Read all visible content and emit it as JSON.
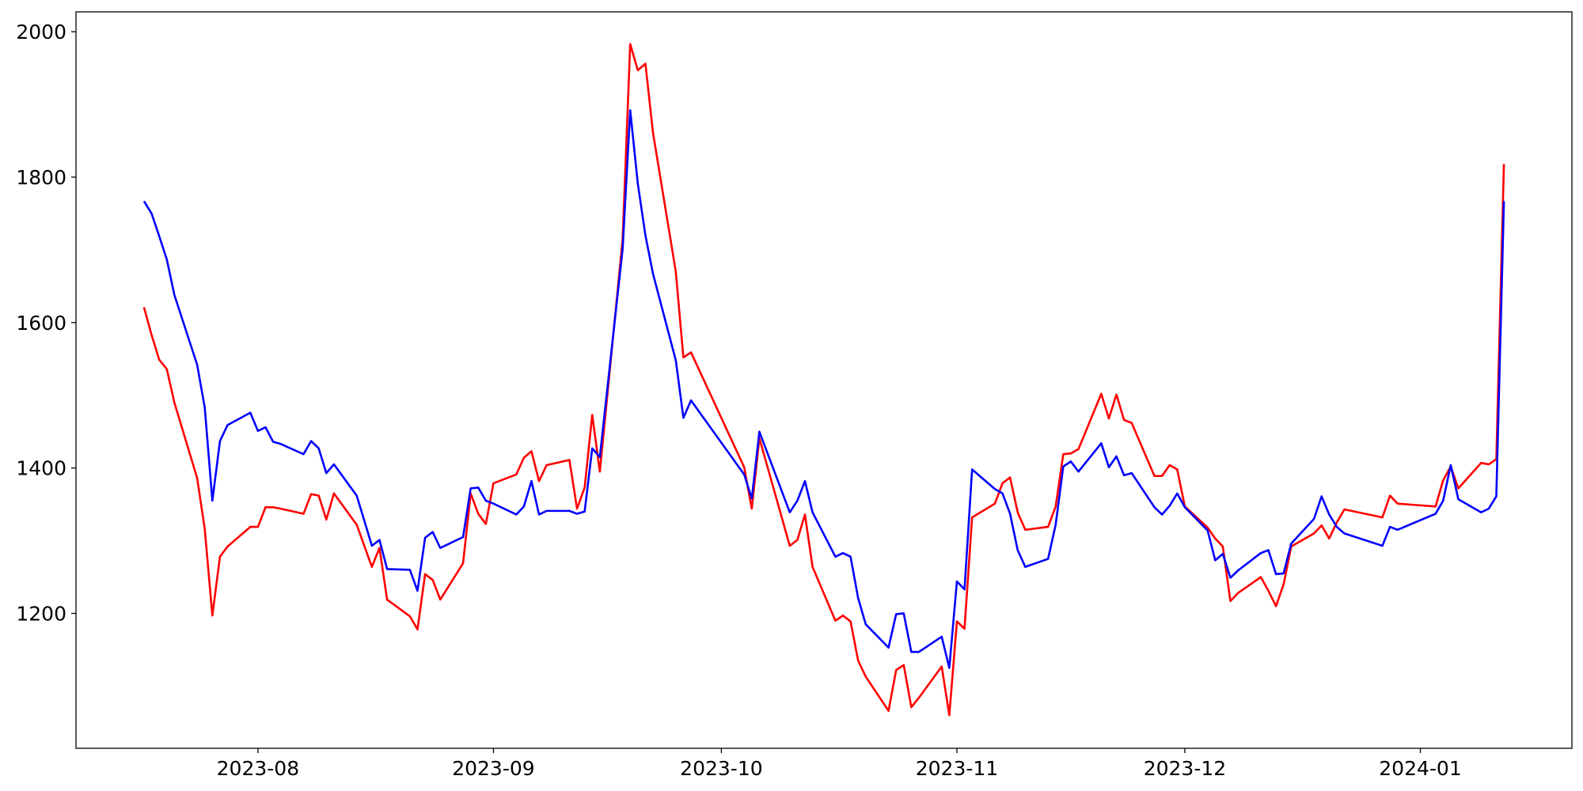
{
  "chart_data": {
    "type": "line",
    "x": [
      19555,
      19556,
      19557,
      19558,
      19559,
      19562,
      19563,
      19564,
      19565,
      19566,
      19569,
      19570,
      19571,
      19572,
      19573,
      19576,
      19577,
      19578,
      19579,
      19580,
      19583,
      19585,
      19586,
      19587,
      19590,
      19591,
      19592,
      19593,
      19594,
      19597,
      19598,
      19599,
      19600,
      19601,
      19604,
      19605,
      19606,
      19607,
      19608,
      19611,
      19612,
      19613,
      19614,
      19615,
      19618,
      19619,
      19620,
      19621,
      19622,
      19625,
      19626,
      19627,
      19634,
      19635,
      19636,
      19640,
      19641,
      19642,
      19643,
      19646,
      19647,
      19648,
      19649,
      19650,
      19653,
      19654,
      19655,
      19656,
      19657,
      19660,
      19661,
      19662,
      19663,
      19664,
      19667,
      19668,
      19669,
      19670,
      19671,
      19674,
      19675,
      19676,
      19677,
      19678,
      19681,
      19682,
      19683,
      19684,
      19685,
      19688,
      19689,
      19690,
      19691,
      19692,
      19695,
      19696,
      19697,
      19698,
      19699,
      19702,
      19703,
      19704,
      19705,
      19706,
      19709,
      19710,
      19711,
      19712,
      19713,
      19718,
      19719,
      19720,
      19725,
      19726,
      19727,
      19728,
      19731,
      19732,
      19733,
      19734
    ],
    "series": [
      {
        "color": "#ff0000",
        "values": [
          1621,
          1583,
          1549,
          1536,
          1490,
          1386,
          1316,
          1197,
          1278,
          1292,
          1319,
          1319,
          1346,
          1346,
          1344,
          1337,
          1364,
          1362,
          1329,
          1365,
          1322,
          1264,
          1290,
          1219,
          1196,
          1178,
          1254,
          1246,
          1219,
          1269,
          1365,
          1337,
          1323,
          1379,
          1391,
          1414,
          1423,
          1382,
          1404,
          1411,
          1344,
          1373,
          1473,
          1395,
          1714,
          1983,
          1947,
          1956,
          1861,
          1670,
          1552,
          1559,
          1401,
          1344,
          1441,
          1293,
          1301,
          1336,
          1264,
          1190,
          1197,
          1189,
          1135,
          1113,
          1066,
          1122,
          1129,
          1071,
          1084,
          1127,
          1060,
          1189,
          1179,
          1332,
          1351,
          1379,
          1387,
          1339,
          1315,
          1319,
          1347,
          1419,
          1420,
          1426,
          1502,
          1468,
          1501,
          1466,
          1462,
          1389,
          1389,
          1404,
          1398,
          1347,
          1318,
          1303,
          1292,
          1217,
          1228,
          1250,
          1231,
          1210,
          1240,
          1292,
          1310,
          1321,
          1303,
          1325,
          1343,
          1332,
          1362,
          1351,
          1347,
          1383,
          1402,
          1372,
          1407,
          1405,
          1412,
          1818
        ]
      },
      {
        "color": "#0000ff",
        "values": [
          1767,
          1750,
          1719,
          1687,
          1638,
          1542,
          1483,
          1355,
          1437,
          1459,
          1476,
          1451,
          1456,
          1436,
          1433,
          1419,
          1437,
          1427,
          1393,
          1405,
          1362,
          1293,
          1301,
          1261,
          1260,
          1231,
          1304,
          1312,
          1290,
          1305,
          1372,
          1373,
          1355,
          1351,
          1336,
          1347,
          1382,
          1336,
          1341,
          1341,
          1337,
          1340,
          1427,
          1415,
          1701,
          1892,
          1791,
          1720,
          1667,
          1548,
          1469,
          1493,
          1391,
          1358,
          1450,
          1339,
          1355,
          1382,
          1339,
          1278,
          1283,
          1278,
          1221,
          1185,
          1153,
          1199,
          1200,
          1147,
          1147,
          1168,
          1125,
          1244,
          1233,
          1398,
          1371,
          1365,
          1337,
          1287,
          1264,
          1275,
          1322,
          1402,
          1409,
          1395,
          1434,
          1401,
          1416,
          1390,
          1393,
          1346,
          1336,
          1348,
          1365,
          1346,
          1314,
          1273,
          1282,
          1249,
          1259,
          1283,
          1287,
          1254,
          1255,
          1296,
          1330,
          1361,
          1336,
          1319,
          1310,
          1293,
          1319,
          1315,
          1337,
          1355,
          1404,
          1357,
          1339,
          1344,
          1361,
          1767
        ]
      }
    ],
    "xlim": [
      19546.05,
      19742.95
    ],
    "xticks": [
      {
        "value": 19570,
        "label": "2023-08"
      },
      {
        "value": 19601,
        "label": "2023-09"
      },
      {
        "value": 19631,
        "label": "2023-10"
      },
      {
        "value": 19662,
        "label": "2023-11"
      },
      {
        "value": 19692,
        "label": "2023-12"
      },
      {
        "value": 19723,
        "label": "2024-01"
      }
    ],
    "ylim": [
      1014.5,
      2027.3
    ],
    "yticks": [
      1200,
      1400,
      1600,
      1800,
      2000
    ],
    "grid": false
  }
}
